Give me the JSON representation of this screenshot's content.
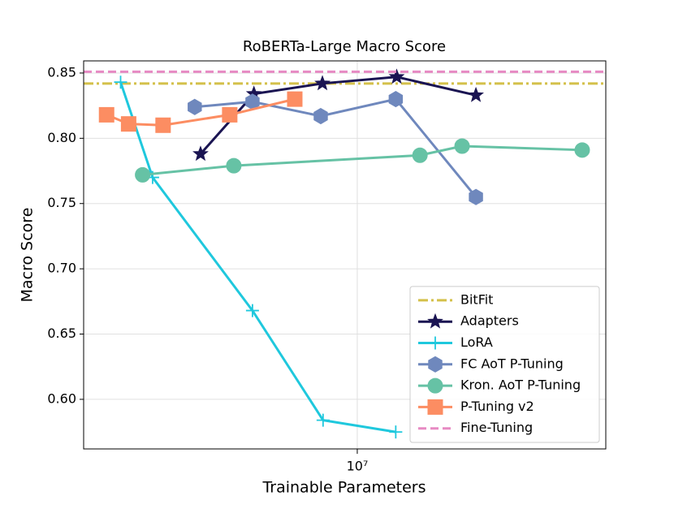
{
  "chart_data": {
    "type": "line",
    "title": "RoBERTa-Large Macro Score",
    "x_label": "Trainable Parameters",
    "y_label": "Macro Score",
    "x_scale": "log",
    "xlim": [
      1124000,
      72800000
    ],
    "xticks": [
      {
        "value": 10000000,
        "label": "10⁷"
      }
    ],
    "ylim": [
      0.562,
      0.8593
    ],
    "yticks": [
      {
        "value": 0.6,
        "label": "0.60"
      },
      0.65,
      {
        "value": 0.7,
        "label": "0.70"
      },
      0.75,
      {
        "value": 0.8,
        "label": "0.80"
      },
      0.85
    ],
    "grid": true,
    "legend": "lower right",
    "series": [
      {
        "name": "BitFit",
        "color": "#d4c04a",
        "style": "dashdot",
        "hline": 0.842
      },
      {
        "name": "Adapters",
        "color": "#1a1452",
        "marker": "star",
        "style": "solid",
        "x": [
          2860000,
          4380000,
          7570000,
          13700000,
          25800000
        ],
        "values": [
          0.788,
          0.834,
          0.842,
          0.847,
          0.833
        ]
      },
      {
        "name": "LoRA",
        "color": "#1fc8dd",
        "marker": "plus",
        "style": "solid",
        "x": [
          1510000,
          1950000,
          4330000,
          7610000,
          13600000
        ],
        "values": [
          0.843,
          0.77,
          0.668,
          0.584,
          0.575
        ]
      },
      {
        "name": "FC AoT P-Tuning",
        "color": "#6f88bd",
        "marker": "hexagon",
        "style": "solid",
        "x": [
          2730000,
          4330000,
          7470000,
          13600000,
          25800000
        ],
        "values": [
          0.824,
          0.828,
          0.817,
          0.83,
          0.755
        ]
      },
      {
        "name": "Kron. AoT P-Tuning",
        "color": "#66c2a5",
        "marker": "circle",
        "style": "solid",
        "x": [
          1800000,
          3730000,
          16500000,
          23100000,
          60300000
        ],
        "values": [
          0.772,
          0.779,
          0.787,
          0.794,
          0.791
        ]
      },
      {
        "name": "P-Tuning v2",
        "color": "#fc8d62",
        "marker": "square",
        "style": "solid",
        "x": [
          1350000,
          1610000,
          2120000,
          3610000,
          6070000
        ],
        "values": [
          0.818,
          0.811,
          0.81,
          0.818,
          0.83
        ]
      },
      {
        "name": "Fine-Tuning",
        "color": "#e78ac3",
        "style": "dashed",
        "hline": 0.851
      }
    ]
  }
}
